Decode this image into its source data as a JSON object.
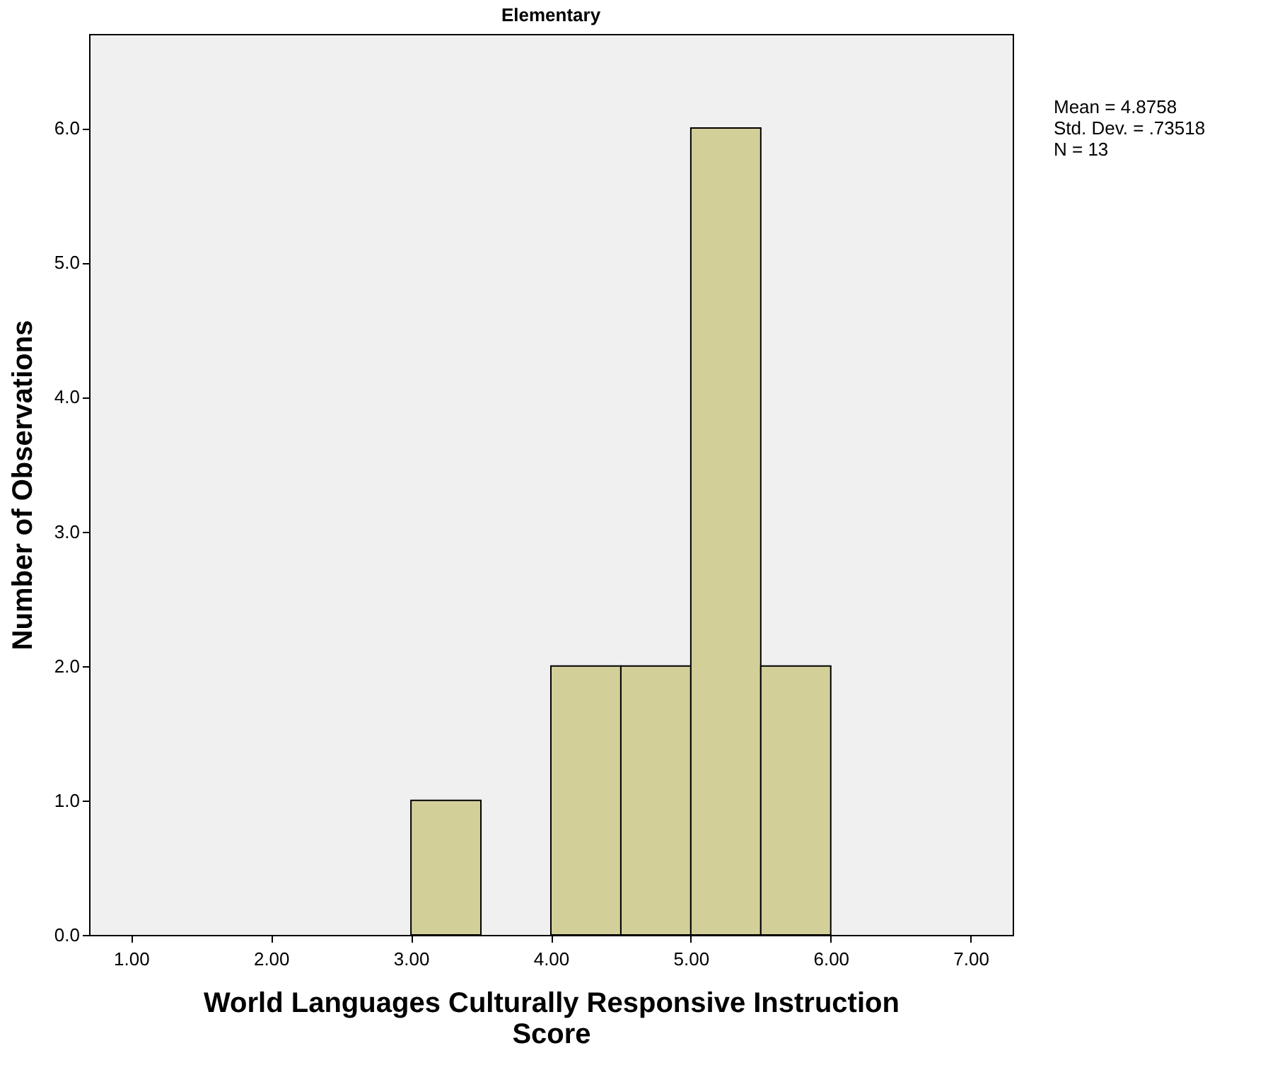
{
  "chart_data": {
    "type": "histogram",
    "title": "Elementary",
    "xlabel": "World Languages Culturally Responsive Instruction Score",
    "ylabel": "Number of Observations",
    "bins": [
      3.0,
      3.5,
      4.0,
      4.5,
      5.0,
      5.5,
      6.0
    ],
    "values": [
      1,
      0,
      2,
      2,
      6,
      2
    ],
    "color": "#d3cf99",
    "xlim": [
      0.7,
      7.3
    ],
    "ylim": [
      0,
      6.7
    ],
    "xticks": [
      {
        "value": 1,
        "label": "1.00"
      },
      {
        "value": 2,
        "label": "2.00"
      },
      {
        "value": 3,
        "label": "3.00"
      },
      {
        "value": 4,
        "label": "4.00"
      },
      {
        "value": 5,
        "label": "5.00"
      },
      {
        "value": 6,
        "label": "6.00"
      },
      {
        "value": 7,
        "label": "7.00"
      }
    ],
    "yticks": [
      {
        "value": 0,
        "label": "0.0"
      },
      {
        "value": 1,
        "label": "1.0"
      },
      {
        "value": 2,
        "label": "2.0"
      },
      {
        "value": 3,
        "label": "3.0"
      },
      {
        "value": 4,
        "label": "4.0"
      },
      {
        "value": 5,
        "label": "5.0"
      },
      {
        "value": 6,
        "label": "6.0"
      }
    ],
    "annotations": [
      "Mean = 4.8758",
      "Std. Dev. = .73518",
      "N = 13"
    ],
    "grid": false
  }
}
